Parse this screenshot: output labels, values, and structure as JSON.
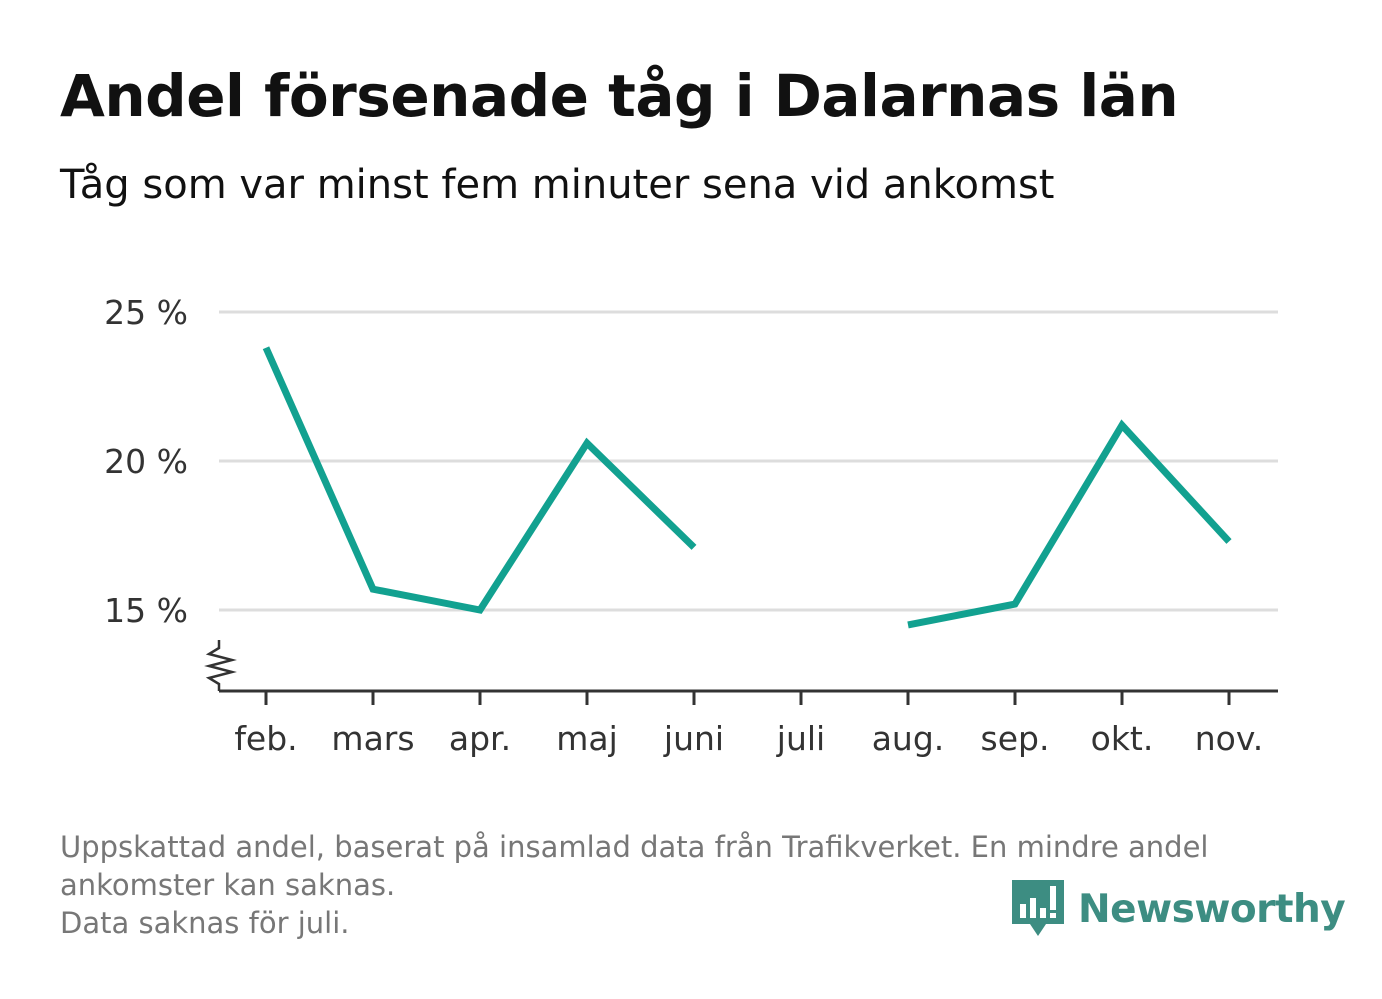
{
  "title": "Andel försenade tåg i Dalarnas län",
  "subtitle": "Tåg som var minst fem minuter sena vid ankomst",
  "footnote": {
    "line1": "Uppskattad andel, baserat på insamlad data från Trafikverket. En mindre andel",
    "line2": "ankomster kan saknas.",
    "line3": "Data saknas för juli."
  },
  "logo": {
    "text": "Newsworthy",
    "icon": "bar-chart-speech-bubble-icon",
    "color": "#3d8d82"
  },
  "colors": {
    "line": "#12a190",
    "grid": "#dddddd",
    "axis": "#333333"
  },
  "chart_data": {
    "type": "line",
    "title": "Andel försenade tåg i Dalarnas län",
    "subtitle": "Tåg som var minst fem minuter sena vid ankomst",
    "categories": [
      "feb.",
      "mars",
      "apr.",
      "maj",
      "juni",
      "juli",
      "aug.",
      "sep.",
      "okt.",
      "nov."
    ],
    "series": [
      {
        "values": [
          23.8,
          15.7,
          15.0,
          20.6,
          17.1,
          null,
          14.5,
          15.2,
          21.2,
          17.3
        ]
      }
    ],
    "yticks": [
      {
        "value": 15,
        "label": "15 %"
      },
      {
        "value": 20,
        "label": "20 %"
      },
      {
        "value": 25,
        "label": "25 %"
      }
    ],
    "ylim": [
      12.3,
      25
    ],
    "axis_break": true,
    "grid": true,
    "xlabel": "",
    "ylabel": ""
  }
}
